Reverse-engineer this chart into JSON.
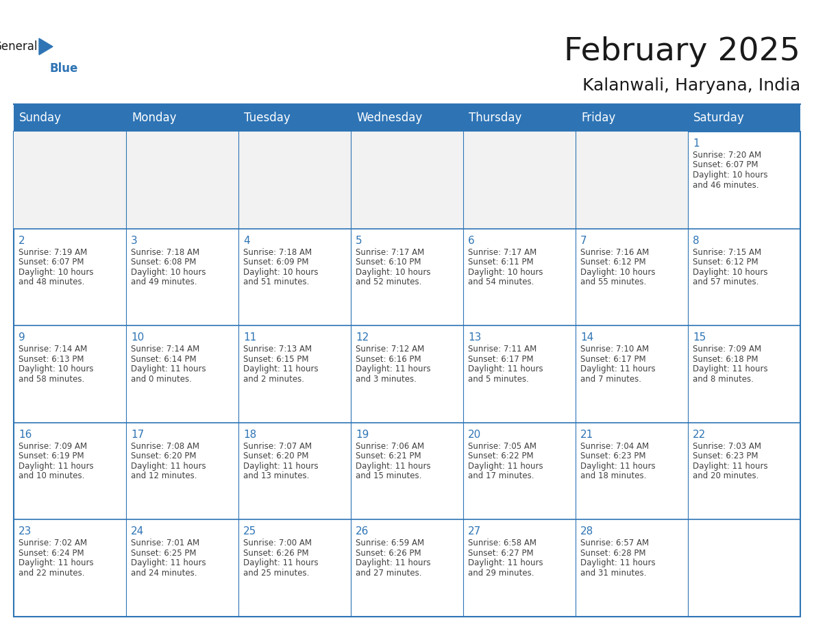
{
  "title": "February 2025",
  "subtitle": "Kalanwali, Haryana, India",
  "header_color": "#2E74B5",
  "header_text_color": "#FFFFFF",
  "cell_bg_color": "#FFFFFF",
  "first_row_empty_bg": "#F2F2F2",
  "border_color": "#2E74B5",
  "day_num_color": "#2E74B5",
  "info_text_color": "#404040",
  "days_of_week": [
    "Sunday",
    "Monday",
    "Tuesday",
    "Wednesday",
    "Thursday",
    "Friday",
    "Saturday"
  ],
  "title_fontsize": 34,
  "subtitle_fontsize": 18,
  "header_fontsize": 12,
  "day_num_fontsize": 11,
  "info_fontsize": 8.5,
  "logo_general_fontsize": 12,
  "logo_blue_fontsize": 12,
  "calendar": [
    [
      null,
      null,
      null,
      null,
      null,
      null,
      {
        "day": 1,
        "sunrise": "7:20 AM",
        "sunset": "6:07 PM",
        "daylight_hours": "10",
        "daylight_minutes": "46"
      }
    ],
    [
      {
        "day": 2,
        "sunrise": "7:19 AM",
        "sunset": "6:07 PM",
        "daylight_hours": "10",
        "daylight_minutes": "48"
      },
      {
        "day": 3,
        "sunrise": "7:18 AM",
        "sunset": "6:08 PM",
        "daylight_hours": "10",
        "daylight_minutes": "49"
      },
      {
        "day": 4,
        "sunrise": "7:18 AM",
        "sunset": "6:09 PM",
        "daylight_hours": "10",
        "daylight_minutes": "51"
      },
      {
        "day": 5,
        "sunrise": "7:17 AM",
        "sunset": "6:10 PM",
        "daylight_hours": "10",
        "daylight_minutes": "52"
      },
      {
        "day": 6,
        "sunrise": "7:17 AM",
        "sunset": "6:11 PM",
        "daylight_hours": "10",
        "daylight_minutes": "54"
      },
      {
        "day": 7,
        "sunrise": "7:16 AM",
        "sunset": "6:12 PM",
        "daylight_hours": "10",
        "daylight_minutes": "55"
      },
      {
        "day": 8,
        "sunrise": "7:15 AM",
        "sunset": "6:12 PM",
        "daylight_hours": "10",
        "daylight_minutes": "57"
      }
    ],
    [
      {
        "day": 9,
        "sunrise": "7:14 AM",
        "sunset": "6:13 PM",
        "daylight_hours": "10",
        "daylight_minutes": "58"
      },
      {
        "day": 10,
        "sunrise": "7:14 AM",
        "sunset": "6:14 PM",
        "daylight_hours": "11",
        "daylight_minutes": "0"
      },
      {
        "day": 11,
        "sunrise": "7:13 AM",
        "sunset": "6:15 PM",
        "daylight_hours": "11",
        "daylight_minutes": "2"
      },
      {
        "day": 12,
        "sunrise": "7:12 AM",
        "sunset": "6:16 PM",
        "daylight_hours": "11",
        "daylight_minutes": "3"
      },
      {
        "day": 13,
        "sunrise": "7:11 AM",
        "sunset": "6:17 PM",
        "daylight_hours": "11",
        "daylight_minutes": "5"
      },
      {
        "day": 14,
        "sunrise": "7:10 AM",
        "sunset": "6:17 PM",
        "daylight_hours": "11",
        "daylight_minutes": "7"
      },
      {
        "day": 15,
        "sunrise": "7:09 AM",
        "sunset": "6:18 PM",
        "daylight_hours": "11",
        "daylight_minutes": "8"
      }
    ],
    [
      {
        "day": 16,
        "sunrise": "7:09 AM",
        "sunset": "6:19 PM",
        "daylight_hours": "11",
        "daylight_minutes": "10"
      },
      {
        "day": 17,
        "sunrise": "7:08 AM",
        "sunset": "6:20 PM",
        "daylight_hours": "11",
        "daylight_minutes": "12"
      },
      {
        "day": 18,
        "sunrise": "7:07 AM",
        "sunset": "6:20 PM",
        "daylight_hours": "11",
        "daylight_minutes": "13"
      },
      {
        "day": 19,
        "sunrise": "7:06 AM",
        "sunset": "6:21 PM",
        "daylight_hours": "11",
        "daylight_minutes": "15"
      },
      {
        "day": 20,
        "sunrise": "7:05 AM",
        "sunset": "6:22 PM",
        "daylight_hours": "11",
        "daylight_minutes": "17"
      },
      {
        "day": 21,
        "sunrise": "7:04 AM",
        "sunset": "6:23 PM",
        "daylight_hours": "11",
        "daylight_minutes": "18"
      },
      {
        "day": 22,
        "sunrise": "7:03 AM",
        "sunset": "6:23 PM",
        "daylight_hours": "11",
        "daylight_minutes": "20"
      }
    ],
    [
      {
        "day": 23,
        "sunrise": "7:02 AM",
        "sunset": "6:24 PM",
        "daylight_hours": "11",
        "daylight_minutes": "22"
      },
      {
        "day": 24,
        "sunrise": "7:01 AM",
        "sunset": "6:25 PM",
        "daylight_hours": "11",
        "daylight_minutes": "24"
      },
      {
        "day": 25,
        "sunrise": "7:00 AM",
        "sunset": "6:26 PM",
        "daylight_hours": "11",
        "daylight_minutes": "25"
      },
      {
        "day": 26,
        "sunrise": "6:59 AM",
        "sunset": "6:26 PM",
        "daylight_hours": "11",
        "daylight_minutes": "27"
      },
      {
        "day": 27,
        "sunrise": "6:58 AM",
        "sunset": "6:27 PM",
        "daylight_hours": "11",
        "daylight_minutes": "29"
      },
      {
        "day": 28,
        "sunrise": "6:57 AM",
        "sunset": "6:28 PM",
        "daylight_hours": "11",
        "daylight_minutes": "31"
      },
      null
    ]
  ]
}
